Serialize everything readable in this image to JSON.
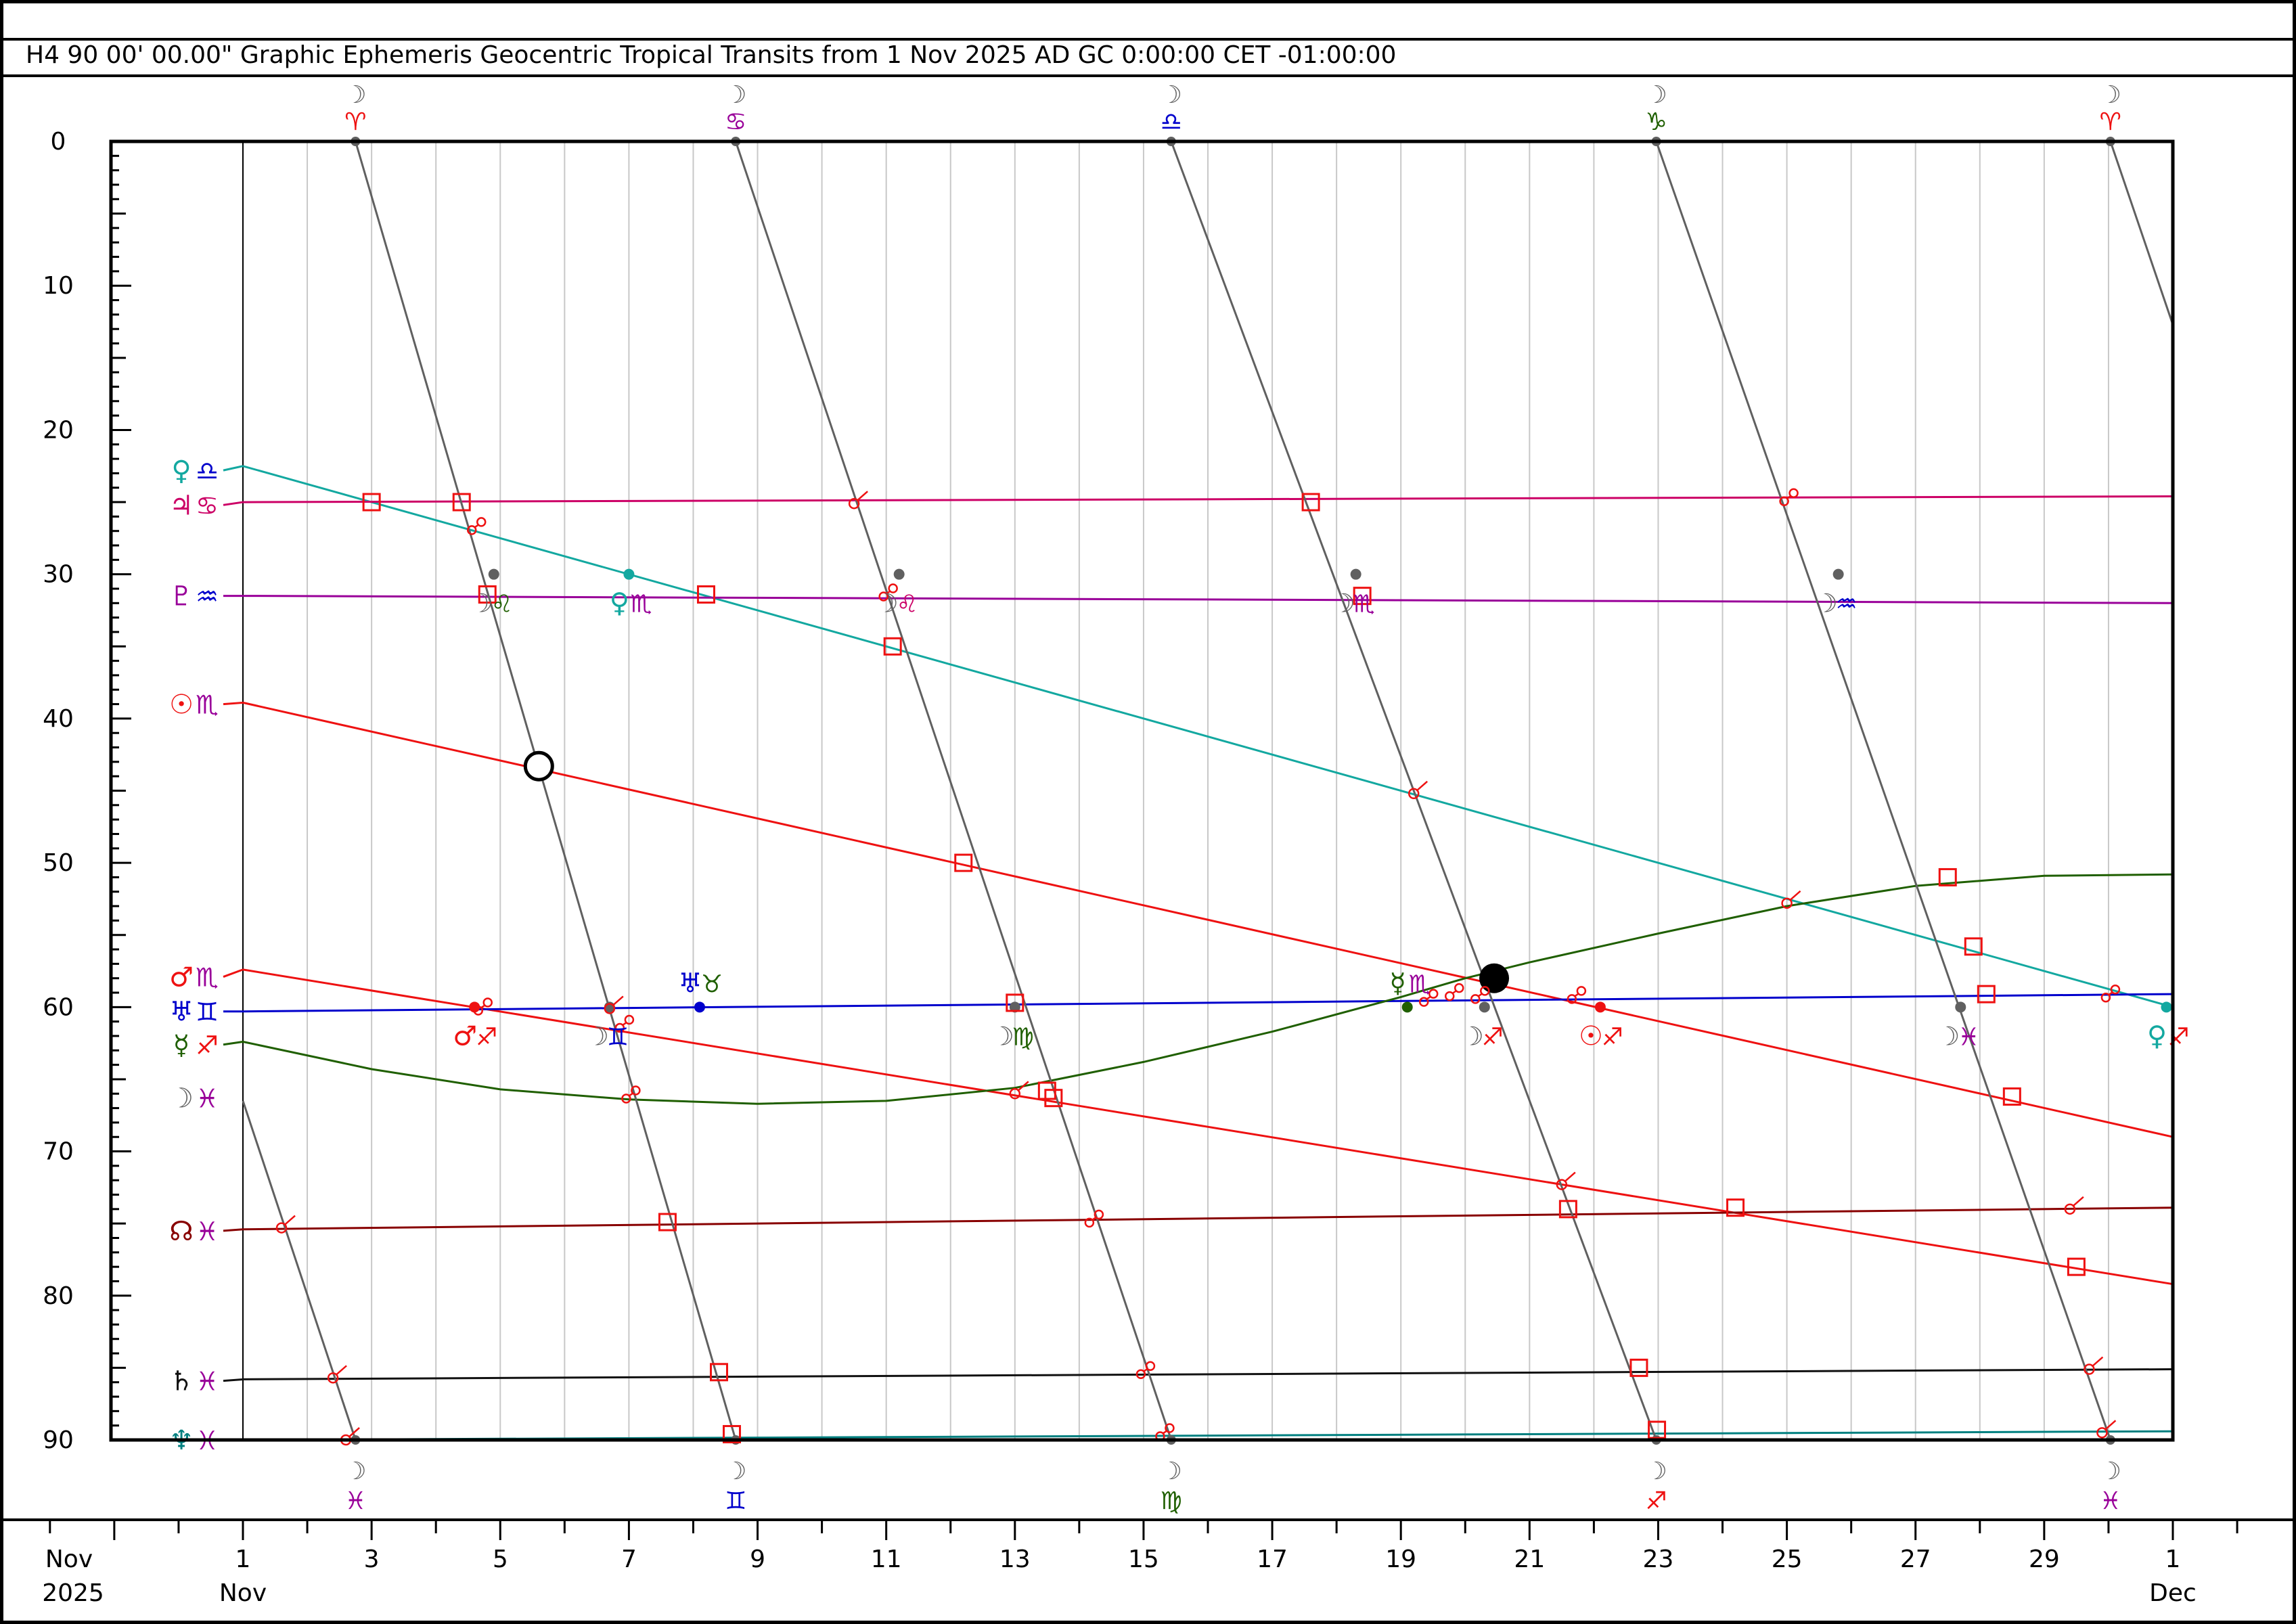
{
  "header": {
    "title": "H4   90 00' 00.00\" Graphic Ephemeris Geocentric Tropical Transits from 1 Nov 2025 AD GC 0:00:00 CET -01:00:00"
  },
  "colors": {
    "moon": "#606060",
    "venus": "#13a8a0",
    "jupiter": "#cc0066",
    "pluto": "#990099",
    "sun": "#ee1111",
    "mars": "#ee1111",
    "uranus": "#0000cc",
    "mercury": "#1f5f00",
    "node": "#880000",
    "saturn": "#111111",
    "neptune": "#008080",
    "aspect": "#ee1111",
    "grid": "#c8c8c8"
  },
  "chart_data": {
    "type": "line",
    "title": "Graphic Ephemeris Geocentric Tropical Transits from 1 Nov 2025",
    "xlabel": "",
    "ylabel": "",
    "x_unit": "days from 1 Nov 2025 0:00",
    "xlim": [
      0,
      30
    ],
    "ylim": [
      0,
      90
    ],
    "y_ticks": [
      "0",
      "10",
      "20",
      "30",
      "40",
      "50",
      "60",
      "70",
      "80",
      "90"
    ],
    "x_tick_labels": [
      {
        "x": 0,
        "label": "1"
      },
      {
        "x": 2,
        "label": "3"
      },
      {
        "x": 4,
        "label": "5"
      },
      {
        "x": 6,
        "label": "7"
      },
      {
        "x": 8,
        "label": "9"
      },
      {
        "x": 10,
        "label": "11"
      },
      {
        "x": 12,
        "label": "13"
      },
      {
        "x": 14,
        "label": "15"
      },
      {
        "x": 16,
        "label": "17"
      },
      {
        "x": 18,
        "label": "19"
      },
      {
        "x": 20,
        "label": "21"
      },
      {
        "x": 22,
        "label": "23"
      },
      {
        "x": 24,
        "label": "25"
      },
      {
        "x": 26,
        "label": "27"
      },
      {
        "x": 28,
        "label": "29"
      },
      {
        "x": 30,
        "label": "1"
      }
    ],
    "x_axis_left": {
      "month": "Nov",
      "year": "2025"
    },
    "x_month_labels": [
      {
        "x": 0,
        "label": "Nov"
      },
      {
        "x": 30,
        "label": "Dec"
      }
    ],
    "series": [
      {
        "key": "venus",
        "glyph": "♀",
        "sign": "♎",
        "sign_color": "#0000cc",
        "label_y": 22.8,
        "points": [
          [
            0,
            22.5
          ],
          [
            30,
            60.0
          ]
        ]
      },
      {
        "key": "jupiter",
        "glyph": "♃",
        "sign": "♋",
        "sign_color": "#cc0066",
        "label_y": 25.2,
        "points": [
          [
            0,
            25.0
          ],
          [
            30,
            24.6
          ]
        ]
      },
      {
        "key": "pluto",
        "glyph": "♇",
        "sign": "♒",
        "sign_color": "#0000cc",
        "label_y": 31.5,
        "points": [
          [
            0,
            31.5
          ],
          [
            30,
            32.0
          ]
        ]
      },
      {
        "key": "sun",
        "glyph": "☉",
        "sign": "♏",
        "sign_color": "#990099",
        "label_y": 39.0,
        "points": [
          [
            0,
            38.9
          ],
          [
            30,
            69.0
          ]
        ]
      },
      {
        "key": "mars",
        "glyph": "♂",
        "sign": "♏",
        "sign_color": "#990099",
        "label_y": 57.9,
        "points": [
          [
            0,
            57.4
          ],
          [
            30,
            79.2
          ]
        ]
      },
      {
        "key": "uranus",
        "glyph": "♅",
        "sign": "♊",
        "sign_color": "#0000cc",
        "label_y": 60.3,
        "points": [
          [
            0,
            60.3
          ],
          [
            30,
            59.1
          ]
        ]
      },
      {
        "key": "mercury",
        "glyph": "☿",
        "sign": "♐",
        "sign_color": "#ee1111",
        "label_y": 62.6,
        "points": [
          [
            0,
            62.4
          ],
          [
            2,
            64.3
          ],
          [
            4,
            65.7
          ],
          [
            6,
            66.4
          ],
          [
            8,
            66.7
          ],
          [
            10,
            66.5
          ],
          [
            12,
            65.6
          ],
          [
            14,
            63.8
          ],
          [
            16,
            61.7
          ],
          [
            18,
            59.3
          ],
          [
            19,
            58.0
          ],
          [
            20,
            56.9
          ],
          [
            22,
            54.9
          ],
          [
            24,
            53.0
          ],
          [
            26,
            51.6
          ],
          [
            28,
            50.9
          ],
          [
            30,
            50.8
          ]
        ]
      },
      {
        "key": "node",
        "glyph": "☊",
        "sign": "♓",
        "sign_color": "#990099",
        "label_y": 75.5,
        "points": [
          [
            0,
            75.4
          ],
          [
            30,
            73.9
          ]
        ]
      },
      {
        "key": "saturn",
        "glyph": "♄",
        "sign": "♓",
        "sign_color": "#990099",
        "label_y": 85.9,
        "points": [
          [
            0,
            85.8
          ],
          [
            30,
            85.1
          ]
        ]
      },
      {
        "key": "neptune",
        "glyph": "♆",
        "sign": "♓",
        "sign_color": "#990099",
        "label_y": 90.0,
        "points": [
          [
            0,
            90.0
          ],
          [
            30,
            89.4
          ]
        ]
      }
    ],
    "moon": {
      "glyph": "☽",
      "sign": "♓",
      "sign_color": "#990099",
      "label_y": 66.3,
      "segments": [
        [
          [
            0,
            66.5
          ],
          [
            1.75,
            90
          ]
        ],
        [
          [
            1.75,
            0
          ],
          [
            7.66,
            90
          ]
        ],
        [
          [
            7.66,
            0
          ],
          [
            14.43,
            90
          ]
        ],
        [
          [
            14.43,
            0
          ],
          [
            21.97,
            90
          ]
        ],
        [
          [
            21.97,
            0
          ],
          [
            29.03,
            90
          ]
        ],
        [
          [
            29.03,
            0
          ],
          [
            30,
            12.7
          ]
        ]
      ],
      "top_signs": [
        {
          "x": 1.75,
          "sign": "♈",
          "color": "#ee1111"
        },
        {
          "x": 7.66,
          "sign": "♋",
          "color": "#990099"
        },
        {
          "x": 14.43,
          "sign": "♎",
          "color": "#0000cc"
        },
        {
          "x": 21.97,
          "sign": "♑",
          "color": "#1f5f00"
        },
        {
          "x": 29.03,
          "sign": "♈",
          "color": "#ee1111"
        }
      ],
      "bottom_signs": [
        {
          "x": 1.75,
          "sign": "♓",
          "color": "#990099"
        },
        {
          "x": 7.66,
          "sign": "♊",
          "color": "#0000cc"
        },
        {
          "x": 14.43,
          "sign": "♍",
          "color": "#1f5f00"
        },
        {
          "x": 21.97,
          "sign": "♐",
          "color": "#ee1111"
        },
        {
          "x": 29.03,
          "sign": "♓",
          "color": "#990099"
        }
      ],
      "ingresses": [
        {
          "x": 3.9,
          "y": 30.0,
          "sign": "♌",
          "color": "#1f5f00",
          "side": "right"
        },
        {
          "x": 5.7,
          "y": 60.0,
          "sign": "♊",
          "color": "#0000cc",
          "side": "right"
        },
        {
          "x": 10.2,
          "y": 30.0,
          "sign": "♌",
          "color": "#cc0066",
          "side": "right"
        },
        {
          "x": 12.0,
          "y": 60.0,
          "sign": "♍",
          "color": "#1f5f00",
          "side": "right"
        },
        {
          "x": 17.3,
          "y": 30.0,
          "sign": "♏",
          "color": "#990099",
          "side": "right"
        },
        {
          "x": 19.3,
          "y": 60.0,
          "sign": "♐",
          "color": "#ee1111",
          "side": "right"
        },
        {
          "x": 24.8,
          "y": 30.0,
          "sign": "♒",
          "color": "#0000cc",
          "side": "right"
        },
        {
          "x": 26.7,
          "y": 60.0,
          "sign": "♓",
          "color": "#990099",
          "side": "right"
        }
      ]
    },
    "planet_ingresses": [
      {
        "x": 6.0,
        "y": 30.0,
        "glyph": "♀",
        "sign": "♏",
        "color": "#13a8a0",
        "sign_color": "#990099",
        "dot": "#13a8a0"
      },
      {
        "x": 7.1,
        "y": 60.0,
        "glyph": "♅",
        "sign": "♉",
        "color": "#0000cc",
        "sign_color": "#1f5f00",
        "dot": "#0000cc",
        "label_above": true
      },
      {
        "x": 18.1,
        "y": 60.0,
        "glyph": "☿",
        "sign": "♏",
        "color": "#1f5f00",
        "sign_color": "#990099",
        "dot": "#1f5f00",
        "label_above": true
      },
      {
        "x": 21.1,
        "y": 60.0,
        "glyph": "☉",
        "sign": "♐",
        "color": "#ee1111",
        "sign_color": "#ee1111",
        "dot": "#ee1111"
      },
      {
        "x": 3.6,
        "y": 60.0,
        "glyph": "♂",
        "sign": "♐",
        "color": "#ee1111",
        "sign_color": "#ee1111",
        "dot": "#ee1111"
      },
      {
        "x": 29.9,
        "y": 60.0,
        "glyph": "♀",
        "sign": "♐",
        "color": "#13a8a0",
        "sign_color": "#ee1111",
        "dot": "#13a8a0"
      }
    ],
    "lunations": [
      {
        "type": "full",
        "x": 4.6,
        "y": 43.3
      },
      {
        "type": "new",
        "x": 19.45,
        "y": 58.0
      }
    ],
    "aspects": [
      {
        "t": "square",
        "x": 2.0,
        "y": 25.0
      },
      {
        "t": "square",
        "x": 3.4,
        "y": 25.0
      },
      {
        "t": "square",
        "x": 3.8,
        "y": 31.4
      },
      {
        "t": "square",
        "x": 7.2,
        "y": 31.4
      },
      {
        "t": "square",
        "x": 10.1,
        "y": 35.0
      },
      {
        "t": "square",
        "x": 11.2,
        "y": 50.0
      },
      {
        "t": "square",
        "x": 12.0,
        "y": 59.7
      },
      {
        "t": "square",
        "x": 12.5,
        "y": 65.8
      },
      {
        "t": "square",
        "x": 12.6,
        "y": 66.3
      },
      {
        "t": "square",
        "x": 6.6,
        "y": 74.9
      },
      {
        "t": "square",
        "x": 7.4,
        "y": 85.3
      },
      {
        "t": "square",
        "x": 7.6,
        "y": 89.6
      },
      {
        "t": "square",
        "x": 16.6,
        "y": 25.0
      },
      {
        "t": "square",
        "x": 17.4,
        "y": 31.5
      },
      {
        "t": "square",
        "x": 20.6,
        "y": 74.0
      },
      {
        "t": "square",
        "x": 21.7,
        "y": 85.0
      },
      {
        "t": "square",
        "x": 21.98,
        "y": 89.3
      },
      {
        "t": "square",
        "x": 23.2,
        "y": 73.9
      },
      {
        "t": "square",
        "x": 26.5,
        "y": 51.0
      },
      {
        "t": "square",
        "x": 26.9,
        "y": 55.8
      },
      {
        "t": "square",
        "x": 27.1,
        "y": 59.1
      },
      {
        "t": "square",
        "x": 27.5,
        "y": 66.2
      },
      {
        "t": "square",
        "x": 28.5,
        "y": 78.0
      },
      {
        "t": "sextile",
        "x": 0.6,
        "y": 75.3
      },
      {
        "t": "sextile",
        "x": 1.4,
        "y": 85.7
      },
      {
        "t": "sextile",
        "x": 1.6,
        "y": 90.0
      },
      {
        "t": "sextile",
        "x": 5.7,
        "y": 60.1
      },
      {
        "t": "sextile",
        "x": 9.5,
        "y": 25.1
      },
      {
        "t": "sextile",
        "x": 12.0,
        "y": 66.0
      },
      {
        "t": "sextile",
        "x": 18.2,
        "y": 45.2
      },
      {
        "t": "sextile",
        "x": 20.5,
        "y": 72.3
      },
      {
        "t": "sextile",
        "x": 24.0,
        "y": 52.8
      },
      {
        "t": "sextile",
        "x": 28.4,
        "y": 74.0
      },
      {
        "t": "sextile",
        "x": 28.7,
        "y": 85.1
      },
      {
        "t": "sextile",
        "x": 28.9,
        "y": 89.5
      },
      {
        "t": "opp",
        "x": 3.6,
        "y": 26.8
      },
      {
        "t": "opp",
        "x": 3.7,
        "y": 60.1
      },
      {
        "t": "opp",
        "x": 5.9,
        "y": 61.3
      },
      {
        "t": "opp",
        "x": 6.0,
        "y": 66.2
      },
      {
        "t": "opp",
        "x": 10.0,
        "y": 31.4
      },
      {
        "t": "opp",
        "x": 13.2,
        "y": 74.8
      },
      {
        "t": "opp",
        "x": 14.0,
        "y": 85.3
      },
      {
        "t": "opp",
        "x": 14.3,
        "y": 89.6
      },
      {
        "t": "opp",
        "x": 18.4,
        "y": 59.5
      },
      {
        "t": "opp",
        "x": 18.8,
        "y": 59.1
      },
      {
        "t": "opp",
        "x": 19.2,
        "y": 59.3
      },
      {
        "t": "opp",
        "x": 20.7,
        "y": 59.3
      },
      {
        "t": "opp",
        "x": 24.0,
        "y": 24.8
      },
      {
        "t": "opp",
        "x": 29.0,
        "y": 59.2
      }
    ]
  }
}
